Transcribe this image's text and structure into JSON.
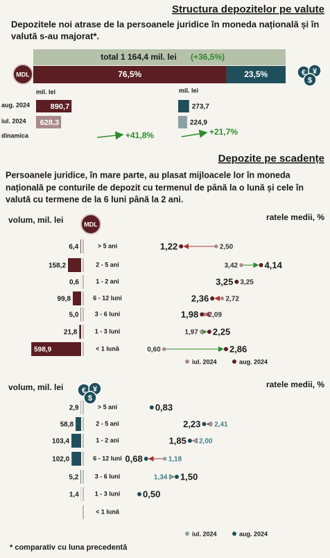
{
  "section1": {
    "title": "Structura depozitelor pe valute",
    "subtitle_lines": [
      "Depozitele noi atrase de la persoanele juridice în moneda națională și în",
      "valută s-au majorat*."
    ],
    "total_label": "total 1 164,4 mil. lei",
    "total_change": "(+36,5%)",
    "mdl_share": 76.5,
    "mdl_share_label": "76,5%",
    "fx_share": 23.5,
    "fx_share_label": "23,5%",
    "mdl_badge": "MDL",
    "fx_symbols": [
      "€",
      "¥",
      "$"
    ],
    "unit": "mil. lei",
    "row_labels": [
      "aug. 2024",
      "iul. 2024",
      "dinamica"
    ],
    "mdl": {
      "aug": 890.7,
      "aug_label": "890,7",
      "iul": 628.3,
      "iul_label": "628,3",
      "dynamics": "+41,8%"
    },
    "fx": {
      "aug": 273.7,
      "aug_label": "273,7",
      "iul": 224.9,
      "iul_label": "224,9",
      "dynamics": "+21,7%"
    }
  },
  "section2": {
    "title": "Depozite pe scadențe",
    "paragraph_lines": [
      "Persoanele juridice, în mare parte, au plasat mijloacele lor în moneda",
      "națională pe conturile de depozit cu termenul de până la o lună și cele în",
      "valută cu termene de la 6 luni până la 2 ani."
    ],
    "volume_axis": "volum, mil. lei",
    "rates_axis": "ratele medii, %",
    "legend": [
      "iul. 2024",
      "aug. 2024"
    ],
    "mdl_rows": [
      {
        "term": "> 5 ani",
        "volume": 6.4,
        "volume_label": "6,4",
        "iul": 2.5,
        "iul_label": "2,50",
        "aug": 1.22,
        "aug_label": "1,22"
      },
      {
        "term": "2 - 5 ani",
        "volume": 158.2,
        "volume_label": "158,2",
        "iul": 3.42,
        "iul_label": "3,42",
        "aug": 4.14,
        "aug_label": "4,14"
      },
      {
        "term": "1 - 2 ani",
        "volume": 0.6,
        "volume_label": "0,6",
        "iul": 3.25,
        "iul_label": "3,25",
        "aug": 3.25,
        "aug_label": "3,25"
      },
      {
        "term": "6 - 12 luni",
        "volume": 99.8,
        "volume_label": "99,8",
        "iul": 2.72,
        "iul_label": "2,72",
        "aug": 2.36,
        "aug_label": "2,36"
      },
      {
        "term": "3 - 6 luni",
        "volume": 5.0,
        "volume_label": "5,0",
        "iul": 2.09,
        "iul_label": "2,09",
        "aug": 1.98,
        "aug_label": "1,98"
      },
      {
        "term": "1 - 3 luni",
        "volume": 21.8,
        "volume_label": "21,8",
        "iul": 1.97,
        "iul_label": "1,97",
        "aug": 2.25,
        "aug_label": "2,25"
      },
      {
        "term": "< 1 lună",
        "volume": 598.9,
        "volume_label": "598,9",
        "iul": 0.6,
        "iul_label": "0,60",
        "aug": 2.86,
        "aug_label": "2,86"
      }
    ],
    "fx_rows": [
      {
        "term": "> 5 ani",
        "volume": 2.9,
        "volume_label": "2,9",
        "iul": null,
        "iul_label": null,
        "aug": 0.83,
        "aug_label": "0,83"
      },
      {
        "term": "2 - 5 ani",
        "volume": 58.8,
        "volume_label": "58,8",
        "iul": 2.41,
        "iul_label": "2,41",
        "aug": 2.23,
        "aug_label": "2,23"
      },
      {
        "term": "1 - 2 ani",
        "volume": 103.4,
        "volume_label": "103,4",
        "iul": 2.0,
        "iul_label": "2,00",
        "aug": 1.85,
        "aug_label": "1,85"
      },
      {
        "term": "6 - 12 luni",
        "volume": 102.0,
        "volume_label": "102,0",
        "iul": 1.18,
        "iul_label": "1,18",
        "aug": 0.68,
        "aug_label": "0,68"
      },
      {
        "term": "3 - 6 luni",
        "volume": 5.2,
        "volume_label": "5,2",
        "iul": 1.34,
        "iul_label": "1,34",
        "aug": 1.5,
        "aug_label": "1,50"
      },
      {
        "term": "1 - 3 luni",
        "volume": 1.4,
        "volume_label": "1,4",
        "iul": null,
        "iul_label": null,
        "aug": 0.5,
        "aug_label": "0,50"
      },
      {
        "term": "< 1 lună",
        "volume": null,
        "volume_label": null,
        "iul": null,
        "iul_label": null,
        "aug": null,
        "aug_label": null
      }
    ],
    "footnote": "* comparativ cu luna precedentă"
  }
}
